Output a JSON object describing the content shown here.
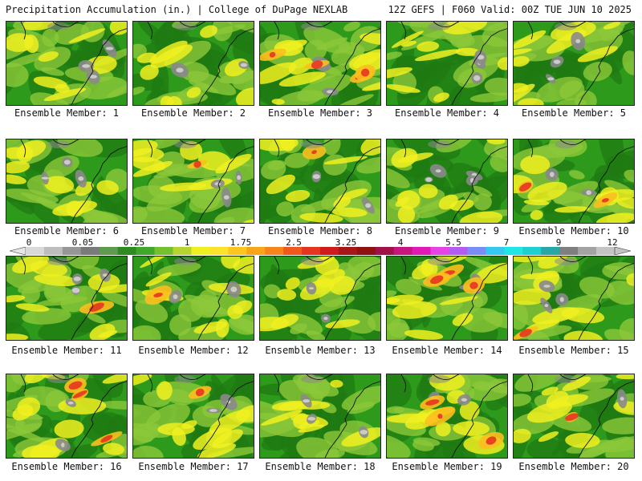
{
  "header": {
    "title_left": "Precipitation Accumulation (in.) | College of DuPage NEXLAB",
    "title_right": "12Z GEFS | F060 Valid: 00Z TUE JUN 10 2025"
  },
  "colorbar": {
    "tick_labels": [
      "0",
      "0.05",
      "0.25",
      "1",
      "1.75",
      "2.5",
      "3.25",
      "4",
      "5.5",
      "7",
      "9",
      "12"
    ],
    "colors": [
      "#d9d9d9",
      "#bdbdbd",
      "#969696",
      "#7a7a7a",
      "#5e9a4f",
      "#2e8b1f",
      "#3fa82a",
      "#75c12d",
      "#b5d42f",
      "#f0f020",
      "#fde22a",
      "#fcc61f",
      "#f9a51a",
      "#f7841a",
      "#ef5a1c",
      "#e53520",
      "#cf1b1b",
      "#a61616",
      "#8e1010",
      "#a0114a",
      "#c7157f",
      "#e11ab5",
      "#e642e6",
      "#b45cf0",
      "#7a8cf5",
      "#36c8f0",
      "#20e6e6",
      "#1ecfcf",
      "#29a6a6",
      "#7f7f7f",
      "#a3a3a3",
      "#c4c4c4"
    ]
  },
  "members": [
    "Ensemble Member: 1",
    "Ensemble Member: 2",
    "Ensemble Member: 3",
    "Ensemble Member: 4",
    "Ensemble Member: 5",
    "Ensemble Member: 6",
    "Ensemble Member: 7",
    "Ensemble Member: 8",
    "Ensemble Member: 9",
    "Ensemble Member: 10",
    "Ensemble Member: 11",
    "Ensemble Member: 12",
    "Ensemble Member: 13",
    "Ensemble Member: 14",
    "Ensemble Member: 15",
    "Ensemble Member: 16",
    "Ensemble Member: 17",
    "Ensemble Member: 18",
    "Ensemble Member: 19",
    "Ensemble Member: 20"
  ],
  "field_colors": {
    "dark_green": "#1f7a12",
    "green": "#3fa82a",
    "light_green": "#8cc83a",
    "yellow": "#f0f020",
    "orange": "#fcbf1e",
    "red": "#e53520",
    "gray": "#8a8a8a",
    "light_gray": "#cfcfcf"
  }
}
